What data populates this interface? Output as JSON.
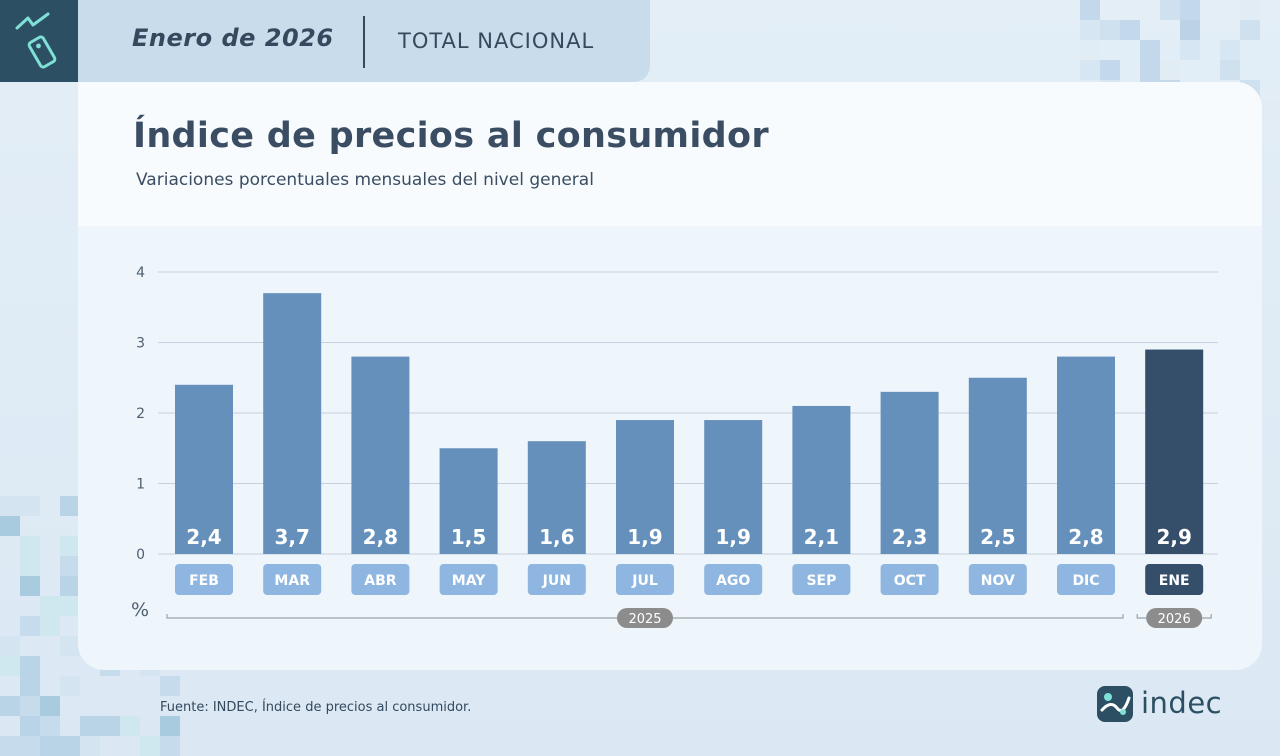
{
  "header": {
    "date": "Enero de 2026",
    "scope": "TOTAL NACIONAL"
  },
  "icons": {
    "logo": "price-tag-trend-icon",
    "brand": "indec-logo-icon"
  },
  "colors": {
    "bar": "#6590bb",
    "bar_highlight": "#354f6a",
    "label_box": "#8fb6e0",
    "label_box_highlight": "#354f6a",
    "year_pill": "#8c8c8c",
    "grid": "#c5d1dc"
  },
  "chart_data": {
    "type": "bar",
    "title": "Índice de precios al consumidor",
    "subtitle": "Variaciones porcentuales mensuales del nivel general",
    "categories": [
      "FEB",
      "MAR",
      "ABR",
      "MAY",
      "JUN",
      "JUL",
      "AGO",
      "SEP",
      "OCT",
      "NOV",
      "DIC",
      "ENE"
    ],
    "values": [
      2.4,
      3.7,
      2.8,
      1.5,
      1.6,
      1.9,
      1.9,
      2.1,
      2.3,
      2.5,
      2.8,
      2.9
    ],
    "value_labels": [
      "2,4",
      "3,7",
      "2,8",
      "1,5",
      "1,6",
      "1,9",
      "1,9",
      "2,1",
      "2,3",
      "2,5",
      "2,8",
      "2,9"
    ],
    "highlight_index": 11,
    "ylim": [
      0,
      4
    ],
    "yticks": [
      "0",
      "1",
      "2",
      "3",
      "4"
    ],
    "ylabel": "%",
    "grid": true,
    "year_groups": [
      {
        "label": "2025",
        "from": 0,
        "to": 10
      },
      {
        "label": "2026",
        "from": 11,
        "to": 11
      }
    ]
  },
  "footer": {
    "source": "Fuente: INDEC, Índice de precios al consumidor.",
    "brand": "indec"
  }
}
